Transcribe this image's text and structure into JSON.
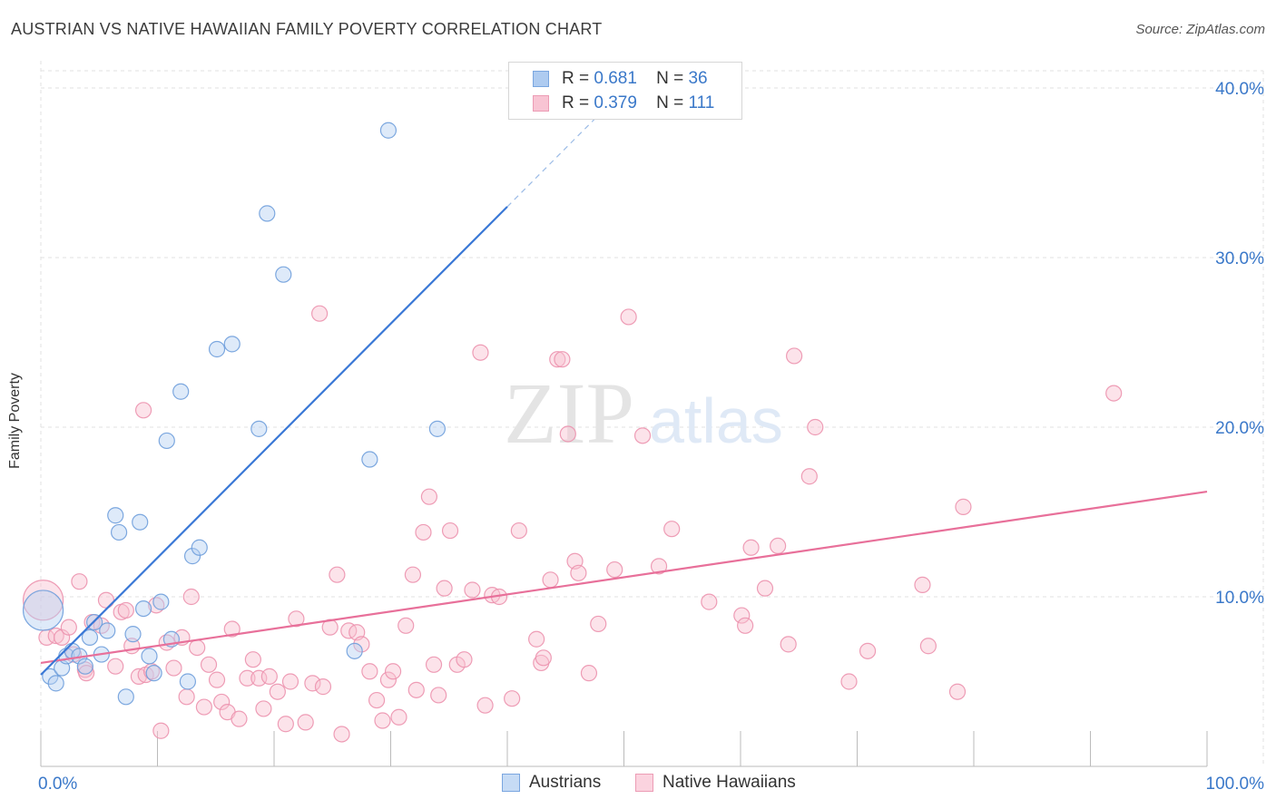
{
  "title": "AUSTRIAN VS NATIVE HAWAIIAN FAMILY POVERTY CORRELATION CHART",
  "source": "Source: ZipAtlas.com",
  "watermark": {
    "zip": "ZIP",
    "atlas": "atlas"
  },
  "legend_top": {
    "rows": [
      {
        "r_label": "R =",
        "r_value": "0.681",
        "n_label": "N =",
        "n_value": "36",
        "color": "#aecbf0",
        "stroke": "#7aa6e0"
      },
      {
        "r_label": "R =",
        "r_value": "0.379",
        "n_label": "N =",
        "n_value": "111",
        "color": "#f8c4d3",
        "stroke": "#ec9cb5"
      }
    ]
  },
  "legend_bottom": [
    {
      "label": "Austrians",
      "color": "#c6dbf5",
      "stroke": "#7aa6e0"
    },
    {
      "label": "Native Hawaiians",
      "color": "#fbd3df",
      "stroke": "#ec9cb5"
    }
  ],
  "chart_data": {
    "type": "scatter",
    "title": "AUSTRIAN VS NATIVE HAWAIIAN FAMILY POVERTY CORRELATION CHART",
    "xlabel": "",
    "ylabel": "Family Poverty",
    "xlim": [
      0,
      100
    ],
    "ylim": [
      0,
      40
    ],
    "x_tick_labels": [
      "0.0%",
      "100.0%"
    ],
    "y_ticks": [
      10,
      20,
      30,
      40
    ],
    "y_tick_labels": [
      "10.0%",
      "20.0%",
      "30.0%",
      "40.0%"
    ],
    "grid": true,
    "colors": {
      "austrians": "#3a78d6",
      "native_hawaiians": "#e8709a",
      "tick_label": "#3a78c9"
    },
    "series": [
      {
        "name": "Austrians",
        "trend": {
          "x0": 0,
          "y0": 5.4,
          "x1": 40.0,
          "y1": 33.0,
          "dash_to_x": 48.0
        },
        "points": [
          [
            0.2,
            9.2,
            "big"
          ],
          [
            0.8,
            5.3
          ],
          [
            1.3,
            4.9
          ],
          [
            1.8,
            5.8
          ],
          [
            2.2,
            6.5
          ],
          [
            2.7,
            6.8
          ],
          [
            3.3,
            6.5
          ],
          [
            3.8,
            5.9
          ],
          [
            4.2,
            7.6
          ],
          [
            4.6,
            8.5
          ],
          [
            5.2,
            6.6
          ],
          [
            5.7,
            8.0
          ],
          [
            6.4,
            14.8
          ],
          [
            6.7,
            13.8
          ],
          [
            7.3,
            4.1
          ],
          [
            7.9,
            7.8
          ],
          [
            8.5,
            14.4
          ],
          [
            8.8,
            9.3
          ],
          [
            9.3,
            6.5
          ],
          [
            9.7,
            5.5
          ],
          [
            10.3,
            9.7
          ],
          [
            10.8,
            19.2
          ],
          [
            11.2,
            7.5
          ],
          [
            12.0,
            22.1
          ],
          [
            12.6,
            5.0
          ],
          [
            13.0,
            12.4
          ],
          [
            13.6,
            12.9
          ],
          [
            15.1,
            24.6
          ],
          [
            16.4,
            24.9
          ],
          [
            18.7,
            19.9
          ],
          [
            19.4,
            32.6
          ],
          [
            20.8,
            29.0
          ],
          [
            26.9,
            6.8
          ],
          [
            28.2,
            18.1
          ],
          [
            29.8,
            37.5
          ],
          [
            34.0,
            19.9
          ]
        ]
      },
      {
        "name": "Native Hawaiians",
        "trend": {
          "x0": 0,
          "y0": 6.1,
          "x1": 100,
          "y1": 16.2
        },
        "points": [
          [
            0.2,
            9.8,
            "big"
          ],
          [
            0.5,
            7.6
          ],
          [
            1.3,
            7.7
          ],
          [
            1.8,
            7.6
          ],
          [
            2.4,
            8.2
          ],
          [
            2.8,
            6.6
          ],
          [
            3.3,
            10.9
          ],
          [
            3.8,
            5.7
          ],
          [
            3.9,
            5.5
          ],
          [
            4.4,
            8.5
          ],
          [
            5.2,
            8.3
          ],
          [
            5.6,
            9.8
          ],
          [
            6.4,
            5.9
          ],
          [
            6.9,
            9.1
          ],
          [
            7.3,
            9.2
          ],
          [
            7.8,
            7.1
          ],
          [
            8.4,
            5.3
          ],
          [
            8.8,
            21.0
          ],
          [
            9.0,
            5.4
          ],
          [
            9.5,
            5.6
          ],
          [
            9.9,
            9.5
          ],
          [
            10.3,
            2.1
          ],
          [
            10.8,
            7.3
          ],
          [
            11.4,
            5.8
          ],
          [
            12.1,
            7.6
          ],
          [
            12.5,
            4.1
          ],
          [
            12.9,
            10.0
          ],
          [
            13.4,
            7.0
          ],
          [
            14.0,
            3.5
          ],
          [
            14.4,
            6.0
          ],
          [
            15.1,
            5.1
          ],
          [
            15.5,
            3.8
          ],
          [
            16.0,
            3.2
          ],
          [
            16.4,
            8.1
          ],
          [
            17.0,
            2.8
          ],
          [
            17.7,
            5.2
          ],
          [
            18.2,
            6.3
          ],
          [
            18.7,
            5.2
          ],
          [
            19.1,
            3.4
          ],
          [
            19.6,
            5.3
          ],
          [
            20.3,
            4.4
          ],
          [
            21.0,
            2.5
          ],
          [
            21.4,
            5.0
          ],
          [
            21.9,
            8.7
          ],
          [
            22.7,
            2.6
          ],
          [
            23.3,
            4.9
          ],
          [
            23.9,
            26.7
          ],
          [
            24.2,
            4.7
          ],
          [
            24.8,
            8.2
          ],
          [
            25.4,
            11.3
          ],
          [
            25.8,
            1.9
          ],
          [
            26.4,
            8.0
          ],
          [
            27.1,
            7.9
          ],
          [
            27.5,
            7.2
          ],
          [
            28.2,
            5.6
          ],
          [
            28.8,
            3.9
          ],
          [
            29.3,
            2.7
          ],
          [
            29.8,
            5.1
          ],
          [
            30.2,
            5.6
          ],
          [
            30.7,
            2.9
          ],
          [
            31.3,
            8.3
          ],
          [
            31.9,
            11.3
          ],
          [
            32.2,
            4.5
          ],
          [
            32.8,
            13.8
          ],
          [
            33.3,
            15.9
          ],
          [
            33.7,
            6.0
          ],
          [
            34.1,
            4.2
          ],
          [
            34.6,
            10.5
          ],
          [
            35.1,
            13.9
          ],
          [
            35.7,
            6.0
          ],
          [
            36.3,
            6.3
          ],
          [
            37.0,
            10.4
          ],
          [
            37.7,
            24.4
          ],
          [
            38.1,
            3.6
          ],
          [
            38.7,
            10.1
          ],
          [
            39.3,
            10.0
          ],
          [
            40.4,
            4.0
          ],
          [
            41.0,
            13.9
          ],
          [
            42.5,
            7.5
          ],
          [
            42.9,
            6.1
          ],
          [
            43.1,
            6.4
          ],
          [
            43.7,
            11.0
          ],
          [
            44.3,
            24.0
          ],
          [
            44.7,
            24.0
          ],
          [
            45.2,
            19.6
          ],
          [
            45.8,
            12.1
          ],
          [
            46.1,
            11.4
          ],
          [
            47.0,
            5.5
          ],
          [
            47.8,
            8.4
          ],
          [
            49.2,
            11.6
          ],
          [
            50.4,
            26.5
          ],
          [
            51.6,
            19.5
          ],
          [
            53.0,
            11.8
          ],
          [
            54.1,
            14.0
          ],
          [
            57.3,
            9.7
          ],
          [
            60.1,
            8.9
          ],
          [
            60.4,
            8.3
          ],
          [
            60.9,
            12.9
          ],
          [
            62.1,
            10.5
          ],
          [
            63.2,
            13.0
          ],
          [
            64.1,
            7.2
          ],
          [
            64.6,
            24.2
          ],
          [
            65.9,
            17.1
          ],
          [
            66.4,
            20.0
          ],
          [
            69.3,
            5.0
          ],
          [
            70.9,
            6.8
          ],
          [
            75.6,
            10.7
          ],
          [
            76.1,
            7.1
          ],
          [
            78.6,
            4.4
          ],
          [
            79.1,
            15.3
          ],
          [
            92.0,
            22.0
          ]
        ]
      }
    ]
  }
}
